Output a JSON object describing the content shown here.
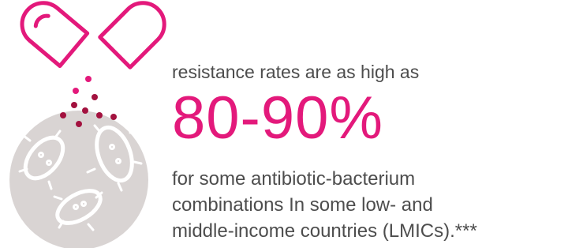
{
  "lead": "resistance rates are as high as",
  "stat": "80-90%",
  "body": [
    "for some antibiotic-bacterium",
    "combinations In some low- and",
    "middle-income countries (LMICs).***"
  ]
}
